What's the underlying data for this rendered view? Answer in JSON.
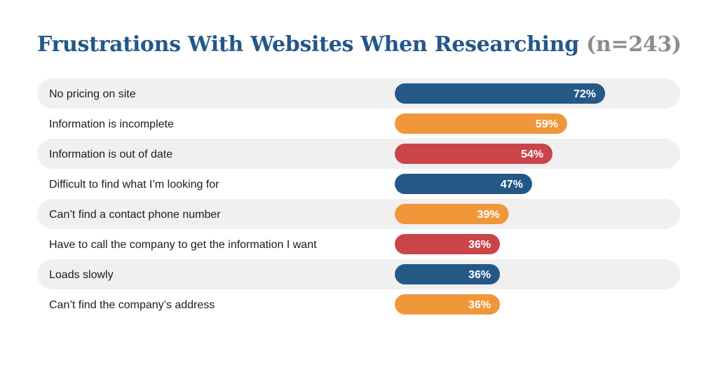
{
  "title": "Frustrations With Websites When Researching",
  "subtitle_n": "(n=243)",
  "colors": {
    "blue": "#245987",
    "orange": "#f0973a",
    "red": "#c9454a",
    "stripe": "#f0f0f0",
    "title": "#23578a"
  },
  "chart_data": {
    "type": "bar",
    "orientation": "horizontal",
    "title": "Frustrations With Websites When Researching (n=243)",
    "categories": [
      "No pricing on site",
      "Information is incomplete",
      "Information is out of date",
      "Difficult to find what I’m looking for",
      "Can’t find a contact phone number",
      "Have to call the company to get the information I want",
      "Loads slowly",
      "Can’t find the company’s address"
    ],
    "values": [
      72,
      59,
      54,
      47,
      39,
      36,
      36,
      36
    ],
    "value_labels": [
      "72%",
      "59%",
      "54%",
      "47%",
      "39%",
      "36%",
      "36%",
      "36%"
    ],
    "bar_colors": [
      "#245987",
      "#f0973a",
      "#c9454a",
      "#245987",
      "#f0973a",
      "#c9454a",
      "#245987",
      "#f0973a"
    ],
    "unit": "%",
    "grid": false,
    "legend": "none"
  }
}
